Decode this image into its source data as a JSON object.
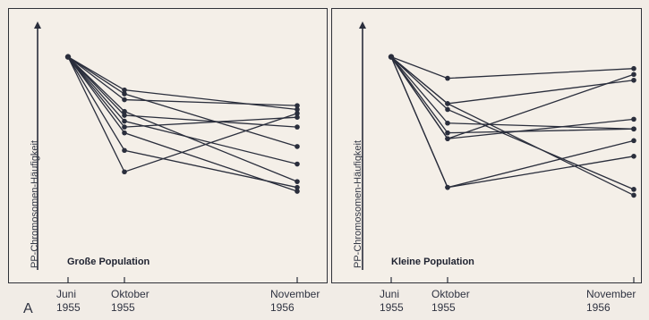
{
  "figure": {
    "panel_letter": "A"
  },
  "chart_data": [
    {
      "type": "line",
      "title": "Große Population",
      "ylabel": "PP-Chromosomen-Häufigkeit",
      "x_ticks": [
        {
          "line1": "Juni",
          "line2": "1955"
        },
        {
          "line1": "Oktober",
          "line2": "1955"
        },
        {
          "line1": "November",
          "line2": "1956"
        }
      ],
      "x_axis": "months since June 1955 (Juni 1955 = 0, Oktober 1955 = 4, November 1956 = 17)",
      "y_scale": "relative frequency, 0 (bottom) to 100 (top), unlabeled",
      "ylim": [
        0,
        100
      ],
      "start": {
        "x": 0,
        "y": 91
      },
      "lines": [
        {
          "y_oct": 74,
          "y_nov": 64
        },
        {
          "y_oct": 72,
          "y_nov": 45
        },
        {
          "y_oct": 69,
          "y_nov": 66
        },
        {
          "y_oct": 63,
          "y_nov": 27
        },
        {
          "y_oct": 61,
          "y_nov": 55
        },
        {
          "y_oct": 58,
          "y_nov": 36
        },
        {
          "y_oct": 55,
          "y_nov": 60
        },
        {
          "y_oct": 52,
          "y_nov": 22
        },
        {
          "y_oct": 43,
          "y_nov": 24
        },
        {
          "y_oct": 32,
          "y_nov": 62
        }
      ]
    },
    {
      "type": "line",
      "title": "Kleine Population",
      "ylabel": "PP-Chromosomen-Häufigkeit",
      "x_ticks": [
        {
          "line1": "Juni",
          "line2": "1955"
        },
        {
          "line1": "Oktober",
          "line2": "1955"
        },
        {
          "line1": "November",
          "line2": "1956"
        }
      ],
      "x_axis": "months since June 1955 (Juni 1955 = 0, Oktober 1955 = 4, November 1956 = 17)",
      "y_scale": "relative frequency, 0 (bottom) to 100 (top), unlabeled",
      "ylim": [
        0,
        100
      ],
      "start": {
        "x": 0,
        "y": 91
      },
      "lines": [
        {
          "y_oct": 80,
          "y_nov": 85
        },
        {
          "y_oct": 67,
          "y_nov": 20
        },
        {
          "y_oct": 67,
          "y_nov": 79
        },
        {
          "y_oct": 64,
          "y_nov": 23
        },
        {
          "y_oct": 57,
          "y_nov": 54
        },
        {
          "y_oct": 52,
          "y_nov": 54
        },
        {
          "y_oct": 49,
          "y_nov": 82
        },
        {
          "y_oct": 49,
          "y_nov": 59
        },
        {
          "y_oct": 24,
          "y_nov": 40
        },
        {
          "y_oct": 24,
          "y_nov": 48
        }
      ]
    }
  ]
}
